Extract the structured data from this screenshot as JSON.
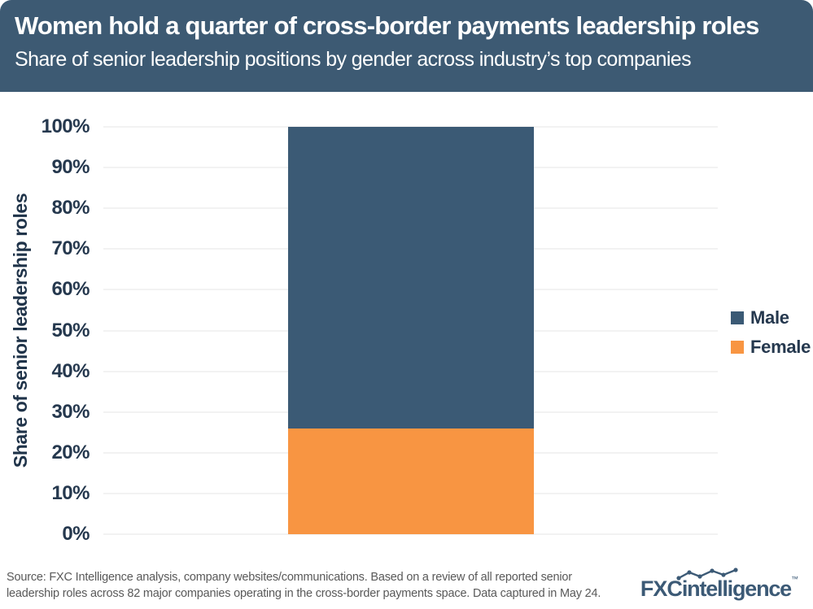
{
  "chart_data": {
    "type": "bar",
    "stacked": true,
    "title": "Women hold a quarter of cross-border payments leadership roles",
    "subtitle": "Share of senior leadership positions by gender across industry’s top companies",
    "categories": [
      ""
    ],
    "series": [
      {
        "name": "Male",
        "values": [
          74
        ],
        "color": "#3b5a75"
      },
      {
        "name": "Female",
        "values": [
          26
        ],
        "color": "#f89542"
      }
    ],
    "xlabel": "",
    "ylabel": "Share of senior leadership roles",
    "ylim": [
      0,
      100
    ],
    "ytick_labels": [
      "0%",
      "10%",
      "20%",
      "30%",
      "40%",
      "50%",
      "60%",
      "70%",
      "80%",
      "90%",
      "100%"
    ],
    "grid": true,
    "legend_position": "right"
  },
  "colors": {
    "header_bg": "#3d5a73",
    "header_text": "#ffffff",
    "axis_text": "#25384e",
    "gridline": "#e6e6e6",
    "source_text": "#595959",
    "logo": "#3c5a76"
  },
  "footer": {
    "source_lines": [
      "Source: FXC Intelligence analysis, company websites/communications. Based on a review of all reported senior",
      "leadership roles across 82 major companies operating in the cross-border payments space. Data captured in May 24."
    ],
    "logo": {
      "bold_text": "FXC",
      "regular_text": "intelligence",
      "trademark": "™"
    }
  }
}
